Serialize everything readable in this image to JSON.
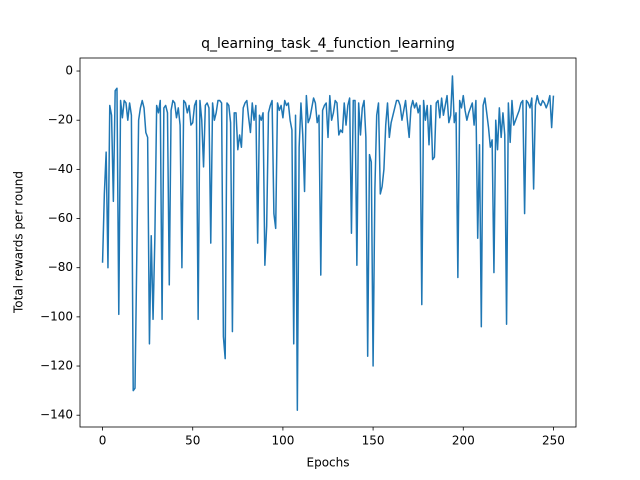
{
  "chart_data": {
    "type": "line",
    "title": "q_learning_task_4_function_learning",
    "x_label": "Epochs",
    "y_label": "Total rewards per round",
    "color": "#1f77b4",
    "x": [
      0,
      1,
      2,
      3,
      4,
      5,
      6,
      7,
      8,
      9,
      10,
      11,
      12,
      13,
      14,
      15,
      16,
      17,
      18,
      19,
      20,
      21,
      22,
      23,
      24,
      25,
      26,
      27,
      28,
      29,
      30,
      31,
      32,
      33,
      34,
      35,
      36,
      37,
      38,
      39,
      40,
      41,
      42,
      43,
      44,
      45,
      46,
      47,
      48,
      49,
      50,
      51,
      52,
      53,
      54,
      55,
      56,
      57,
      58,
      59,
      60,
      61,
      62,
      63,
      64,
      65,
      66,
      67,
      68,
      69,
      70,
      71,
      72,
      73,
      74,
      75,
      76,
      77,
      78,
      79,
      80,
      81,
      82,
      83,
      84,
      85,
      86,
      87,
      88,
      89,
      90,
      91,
      92,
      93,
      94,
      95,
      96,
      97,
      98,
      99,
      100,
      101,
      102,
      103,
      104,
      105,
      106,
      107,
      108,
      109,
      110,
      111,
      112,
      113,
      114,
      115,
      116,
      117,
      118,
      119,
      120,
      121,
      122,
      123,
      124,
      125,
      126,
      127,
      128,
      129,
      130,
      131,
      132,
      133,
      134,
      135,
      136,
      137,
      138,
      139,
      140,
      141,
      142,
      143,
      144,
      145,
      146,
      147,
      148,
      149,
      150,
      151,
      152,
      153,
      154,
      155,
      156,
      157,
      158,
      159,
      160,
      161,
      162,
      163,
      164,
      165,
      166,
      167,
      168,
      169,
      170,
      171,
      172,
      173,
      174,
      175,
      176,
      177,
      178,
      179,
      180,
      181,
      182,
      183,
      184,
      185,
      186,
      187,
      188,
      189,
      190,
      191,
      192,
      193,
      194,
      195,
      196,
      197,
      198,
      199,
      200,
      201,
      202,
      203,
      204,
      205,
      206,
      207,
      208,
      209,
      210,
      211,
      212,
      213,
      214,
      215,
      216,
      217,
      218,
      219,
      220,
      221,
      222,
      223,
      224,
      225,
      226,
      227,
      228,
      229,
      230,
      231,
      232,
      233,
      234,
      235,
      236,
      237,
      238,
      239,
      240,
      241,
      242,
      243,
      244,
      245,
      246,
      247,
      248,
      249,
      250
    ],
    "values": [
      -78,
      -50,
      -33,
      -80,
      -14,
      -18,
      -53,
      -8,
      -7,
      -99,
      -12,
      -19,
      -12,
      -13,
      -20,
      -13,
      -18,
      -130,
      -129,
      -75,
      -20,
      -15,
      -12,
      -15,
      -25,
      -27,
      -111,
      -67,
      -101,
      -68,
      -14,
      -17,
      -12,
      -101,
      -15,
      -14,
      -17,
      -87,
      -16,
      -12,
      -13,
      -19,
      -15,
      -22,
      -80,
      -12,
      -13,
      -17,
      -14,
      -22,
      -21,
      -14,
      -12,
      -101,
      -12,
      -20,
      -39,
      -14,
      -13,
      -15,
      -70,
      -13,
      -20,
      -17,
      -12,
      -12,
      -13,
      -108,
      -117,
      -13,
      -14,
      -21,
      -106,
      -17,
      -17,
      -32,
      -26,
      -31,
      -15,
      -13,
      -12,
      -19,
      -25,
      -13,
      -20,
      -14,
      -70,
      -18,
      -20,
      -17,
      -79,
      -63,
      -17,
      -14,
      -12,
      -58,
      -64,
      -13,
      -16,
      -14,
      -19,
      -12,
      -14,
      -13,
      -20,
      -24,
      -111,
      -18,
      -138,
      -31,
      -13,
      -26,
      -49,
      -10,
      -21,
      -19,
      -15,
      -11,
      -13,
      -21,
      -18,
      -83,
      -16,
      -14,
      -13,
      -27,
      -10,
      -20,
      -17,
      -12,
      -13,
      -26,
      -24,
      -25,
      -13,
      -22,
      -14,
      -11,
      -66,
      -12,
      -12,
      -79,
      -13,
      -26,
      -15,
      -12,
      -27,
      -116,
      -34,
      -37,
      -120,
      -48,
      -18,
      -13,
      -50,
      -47,
      -40,
      -22,
      -13,
      -27,
      -21,
      -18,
      -15,
      -12,
      -12,
      -14,
      -20,
      -16,
      -12,
      -20,
      -27,
      -15,
      -12,
      -15,
      -13,
      -17,
      -14,
      -95,
      -12,
      -20,
      -14,
      -30,
      -14,
      -36,
      -35,
      -13,
      -12,
      -19,
      -11,
      -18,
      -14,
      -10,
      -21,
      -18,
      -2,
      -21,
      -17,
      -84,
      -12,
      -15,
      -10,
      -16,
      -20,
      -17,
      -15,
      -13,
      -22,
      -12,
      -68,
      -30,
      -104,
      -14,
      -11,
      -17,
      -23,
      -31,
      -28,
      -82,
      -20,
      -32,
      -15,
      -27,
      -17,
      -26,
      -103,
      -13,
      -29,
      -12,
      -22,
      -20,
      -18,
      -16,
      -13,
      -12,
      -58,
      -12,
      -13,
      -15,
      -11,
      -48,
      -14,
      -10,
      -13,
      -14,
      -12,
      -13,
      -15,
      -13,
      -10,
      -23,
      -10
    ],
    "xlim": [
      -12.5,
      262.5
    ],
    "xticks": [
      0,
      50,
      100,
      150,
      200,
      250
    ],
    "ylim": [
      -144.8,
      5.3
    ],
    "yticks": [
      {
        "value": 0,
        "label": "0"
      },
      {
        "value": -20,
        "label": "−20"
      },
      {
        "value": -40,
        "label": "−40"
      },
      {
        "value": -60,
        "label": "−60"
      },
      {
        "value": -80,
        "label": "−80"
      },
      {
        "value": -100,
        "label": "−100"
      },
      {
        "value": -120,
        "label": "−120"
      },
      {
        "value": -140,
        "label": "−140"
      }
    ]
  }
}
